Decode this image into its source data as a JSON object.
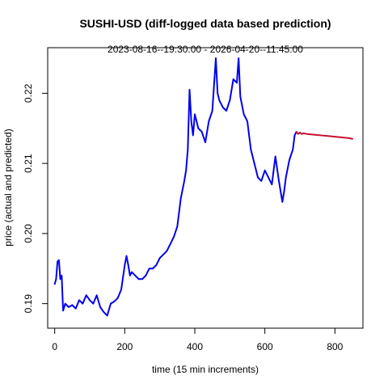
{
  "chart_data": {
    "type": "line",
    "title": "SUSHI-USD (diff-logged data based prediction)",
    "subtitle": "2023-08-16--19:30:00  -  2026-04-20--11:45:00",
    "xlabel": "time (15 min increments)",
    "ylabel": "price (actual and predicted)",
    "xlim": [
      -20,
      880
    ],
    "ylim": [
      0.1865,
      0.2265
    ],
    "x_ticks": [
      0,
      200,
      400,
      600,
      800
    ],
    "y_ticks": [
      0.19,
      0.2,
      0.21,
      0.22
    ],
    "y_tick_labels": [
      "0.19",
      "0.20",
      "0.21",
      "0.22"
    ],
    "grid": false,
    "series": [
      {
        "color": "#0000ee",
        "points": [
          [
            0,
            0.1928
          ],
          [
            4,
            0.1935
          ],
          [
            8,
            0.196
          ],
          [
            12,
            0.1962
          ],
          [
            16,
            0.1935
          ],
          [
            20,
            0.194
          ],
          [
            24,
            0.189
          ],
          [
            30,
            0.19
          ],
          [
            40,
            0.1895
          ],
          [
            50,
            0.1898
          ],
          [
            60,
            0.1893
          ],
          [
            70,
            0.1905
          ],
          [
            80,
            0.19
          ],
          [
            90,
            0.1912
          ],
          [
            100,
            0.1905
          ],
          [
            110,
            0.19
          ],
          [
            120,
            0.1912
          ],
          [
            130,
            0.1895
          ],
          [
            140,
            0.1888
          ],
          [
            150,
            0.1883
          ],
          [
            160,
            0.19
          ],
          [
            170,
            0.1903
          ],
          [
            180,
            0.1908
          ],
          [
            190,
            0.192
          ],
          [
            200,
            0.1955
          ],
          [
            205,
            0.1968
          ],
          [
            210,
            0.1955
          ],
          [
            215,
            0.194
          ],
          [
            220,
            0.1945
          ],
          [
            230,
            0.194
          ],
          [
            240,
            0.1935
          ],
          [
            250,
            0.1935
          ],
          [
            260,
            0.194
          ],
          [
            270,
            0.195
          ],
          [
            280,
            0.195
          ],
          [
            290,
            0.1955
          ],
          [
            300,
            0.1965
          ],
          [
            310,
            0.197
          ],
          [
            320,
            0.1975
          ],
          [
            330,
            0.1985
          ],
          [
            340,
            0.1995
          ],
          [
            350,
            0.201
          ],
          [
            360,
            0.205
          ],
          [
            370,
            0.2075
          ],
          [
            375,
            0.209
          ],
          [
            380,
            0.212
          ],
          [
            385,
            0.2205
          ],
          [
            390,
            0.216
          ],
          [
            395,
            0.214
          ],
          [
            400,
            0.217
          ],
          [
            410,
            0.215
          ],
          [
            420,
            0.2145
          ],
          [
            430,
            0.213
          ],
          [
            440,
            0.216
          ],
          [
            450,
            0.2175
          ],
          [
            460,
            0.225
          ],
          [
            465,
            0.22
          ],
          [
            470,
            0.219
          ],
          [
            480,
            0.218
          ],
          [
            490,
            0.2175
          ],
          [
            500,
            0.219
          ],
          [
            510,
            0.222
          ],
          [
            520,
            0.2215
          ],
          [
            525,
            0.225
          ],
          [
            530,
            0.2195
          ],
          [
            540,
            0.217
          ],
          [
            550,
            0.216
          ],
          [
            560,
            0.212
          ],
          [
            570,
            0.21
          ],
          [
            580,
            0.208
          ],
          [
            590,
            0.2075
          ],
          [
            600,
            0.209
          ],
          [
            610,
            0.208
          ],
          [
            620,
            0.207
          ],
          [
            630,
            0.211
          ],
          [
            640,
            0.2075
          ],
          [
            650,
            0.2045
          ],
          [
            655,
            0.206
          ],
          [
            660,
            0.208
          ],
          [
            670,
            0.2105
          ],
          [
            680,
            0.212
          ],
          [
            685,
            0.214
          ],
          [
            690,
            0.2145
          ]
        ]
      },
      {
        "color": "#c8102e",
        "points": [
          [
            690,
            0.2145
          ],
          [
            695,
            0.2142
          ],
          [
            700,
            0.2144
          ],
          [
            705,
            0.2142
          ],
          [
            710,
            0.2143
          ],
          [
            720,
            0.2142
          ],
          [
            740,
            0.2141
          ],
          [
            760,
            0.214
          ],
          [
            780,
            0.2139
          ],
          [
            800,
            0.2138
          ],
          [
            820,
            0.2137
          ],
          [
            840,
            0.2136
          ],
          [
            850,
            0.2135
          ]
        ]
      }
    ]
  }
}
